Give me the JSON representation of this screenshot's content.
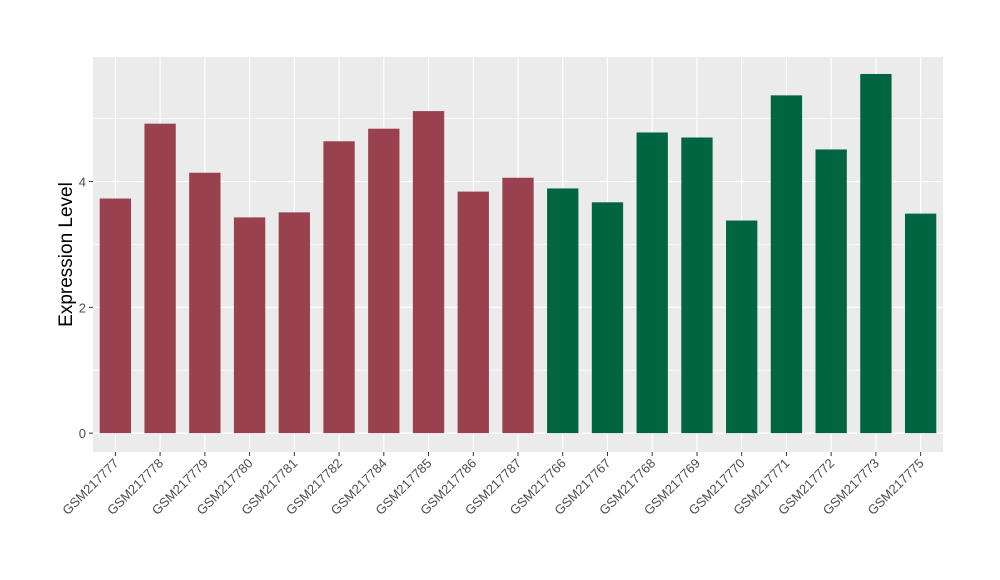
{
  "chart_data": {
    "type": "bar",
    "title": "",
    "xlabel": "",
    "ylabel": "Expression Level",
    "ylim": [
      -0.3,
      5.98
    ],
    "yticks": [
      0,
      2,
      4
    ],
    "grid": true,
    "categories": [
      "GSM217777",
      "GSM217778",
      "GSM217779",
      "GSM217780",
      "GSM217781",
      "GSM217782",
      "GSM217784",
      "GSM217785",
      "GSM217786",
      "GSM217787",
      "GSM217766",
      "GSM217767",
      "GSM217768",
      "GSM217769",
      "GSM217770",
      "GSM217771",
      "GSM217772",
      "GSM217773",
      "GSM217775"
    ],
    "values": [
      3.73,
      4.92,
      4.14,
      3.43,
      3.51,
      4.64,
      4.84,
      5.12,
      3.84,
      4.06,
      3.89,
      3.67,
      4.78,
      4.7,
      3.38,
      5.37,
      4.51,
      5.71,
      3.49
    ],
    "groups": [
      0,
      0,
      0,
      0,
      0,
      0,
      0,
      0,
      0,
      0,
      1,
      1,
      1,
      1,
      1,
      1,
      1,
      1,
      1
    ],
    "colors": [
      "#9A4150",
      "#006642"
    ],
    "panel_background": "#EBEBEB"
  }
}
